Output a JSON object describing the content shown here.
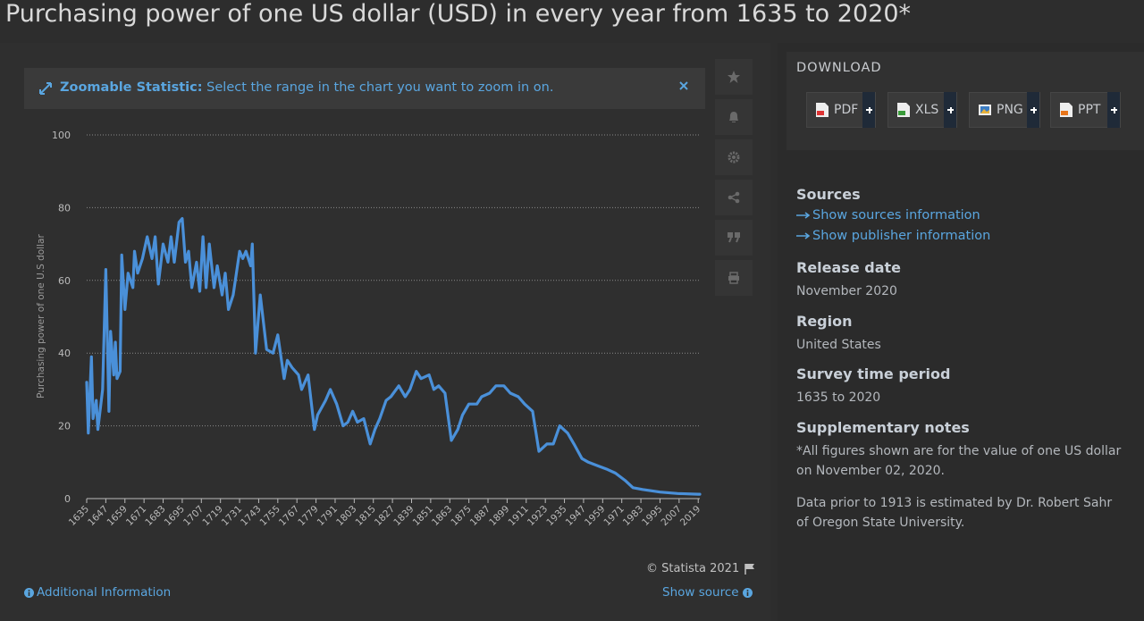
{
  "header": {
    "title": "Purchasing power of one US dollar (USD) in every year from 1635 to 2020*"
  },
  "zoom_notice": {
    "label": "Zoomable Statistic:",
    "text": "Select the range in the chart you want to zoom in on."
  },
  "chart_data": {
    "type": "line",
    "y_label": "Purchasing power of one U.S dollar",
    "color": "#4a90d9",
    "grid": true,
    "xlim": [
      1635,
      2020
    ],
    "ylim": [
      0,
      100
    ],
    "yticks": [
      0,
      20,
      40,
      60,
      80,
      100
    ],
    "xticks": [
      1635,
      1647,
      1659,
      1671,
      1683,
      1695,
      1707,
      1719,
      1731,
      1743,
      1755,
      1767,
      1779,
      1791,
      1803,
      1815,
      1827,
      1839,
      1851,
      1863,
      1875,
      1887,
      1899,
      1911,
      1923,
      1935,
      1947,
      1959,
      1971,
      1983,
      1995,
      2007,
      2019
    ],
    "x": [
      1635,
      1636,
      1638,
      1639,
      1641,
      1642,
      1645,
      1647,
      1649,
      1650,
      1652,
      1653,
      1654,
      1656,
      1657,
      1659,
      1661,
      1664,
      1665,
      1667,
      1670,
      1673,
      1676,
      1678,
      1680,
      1683,
      1686,
      1688,
      1690,
      1693,
      1695,
      1697,
      1699,
      1701,
      1704,
      1706,
      1708,
      1710,
      1712,
      1715,
      1717,
      1720,
      1722,
      1724,
      1727,
      1731,
      1733,
      1735,
      1738,
      1739,
      1741,
      1744,
      1748,
      1752,
      1755,
      1759,
      1761,
      1764,
      1768,
      1770,
      1774,
      1778,
      1780,
      1785,
      1788,
      1792,
      1796,
      1799,
      1802,
      1805,
      1809,
      1813,
      1816,
      1819,
      1823,
      1826,
      1831,
      1835,
      1838,
      1842,
      1845,
      1850,
      1853,
      1856,
      1860,
      1864,
      1868,
      1871,
      1875,
      1880,
      1883,
      1888,
      1892,
      1897,
      1901,
      1906,
      1910,
      1915,
      1919,
      1924,
      1928,
      1932,
      1937,
      1941,
      1946,
      1950,
      1956,
      1962,
      1967,
      1973,
      1978,
      1984,
      1995,
      2006,
      2019,
      2020
    ],
    "values": [
      32,
      18,
      39,
      22,
      27,
      19,
      30,
      63,
      24,
      46,
      34,
      43,
      33,
      35,
      67,
      52,
      62,
      58,
      68,
      62,
      66,
      72,
      66,
      72,
      59,
      70,
      65,
      72,
      65,
      76,
      77,
      65,
      68,
      58,
      65,
      57,
      72,
      58,
      70,
      58,
      64,
      56,
      62,
      52,
      56,
      68,
      66,
      68,
      64,
      70,
      40,
      56,
      41,
      40,
      45,
      33,
      38,
      36,
      34,
      30,
      34,
      19,
      23,
      27,
      30,
      26,
      20,
      21,
      24,
      21,
      22,
      15,
      19,
      22,
      27,
      28,
      31,
      28,
      30,
      35,
      33,
      34,
      30,
      31,
      29,
      16,
      19,
      23,
      26,
      26,
      28,
      29,
      31,
      31,
      29,
      28,
      26,
      24,
      13,
      15,
      15,
      20,
      18,
      15,
      11,
      10,
      9,
      8,
      7,
      5,
      3,
      2.5,
      1.8,
      1.4,
      1.2,
      1.2
    ]
  },
  "credit": "© Statista 2021",
  "links": {
    "additional": "Additional Information",
    "source": "Show source"
  },
  "download": {
    "title": "DOWNLOAD",
    "buttons": [
      "PDF",
      "XLS",
      "PNG",
      "PPT"
    ]
  },
  "sidebar": {
    "sources": {
      "heading": "Sources",
      "links": [
        "Show sources information",
        "Show publisher information"
      ]
    },
    "release": {
      "heading": "Release date",
      "text": "November 2020"
    },
    "region": {
      "heading": "Region",
      "text": "United States"
    },
    "period": {
      "heading": "Survey time period",
      "text": "1635 to 2020"
    },
    "notes": {
      "heading": "Supplementary notes",
      "paragraphs": [
        "*All figures shown are for the value of one US dollar on November 02, 2020.",
        "Data prior to 1913 is estimated by Dr. Robert Sahr of Oregon State University."
      ]
    }
  }
}
